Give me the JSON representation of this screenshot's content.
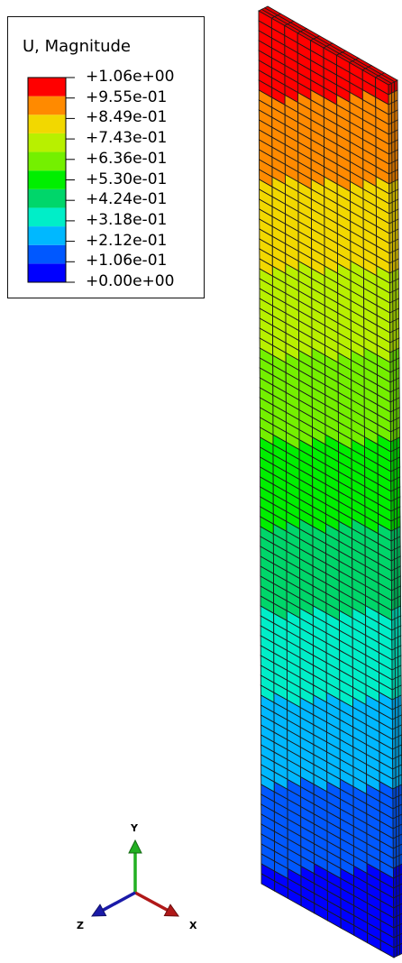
{
  "legend": {
    "title": "U, Magnitude",
    "colors": [
      "#0000ff",
      "#0058ff",
      "#00b8ff",
      "#00eec8",
      "#00d66a",
      "#00ef00",
      "#74f000",
      "#b8f000",
      "#f2d800",
      "#ff8a00",
      "#ff0000"
    ],
    "ticks": [
      "+1.06e+00",
      "+9.55e-01",
      "+8.49e-01",
      "+7.43e-01",
      "+6.36e-01",
      "+5.30e-01",
      "+4.24e-01",
      "+3.18e-01",
      "+2.12e-01",
      "+1.06e-01",
      "+0.00e+00"
    ]
  },
  "model": {
    "element_rows": 88,
    "element_cols": 10,
    "depth_layers": 3
  },
  "triad": {
    "axes": [
      {
        "label": "Y",
        "color": "#22b022"
      },
      {
        "label": "X",
        "color": "#b01818"
      },
      {
        "label": "Z",
        "color": "#1a1aa8"
      }
    ]
  }
}
